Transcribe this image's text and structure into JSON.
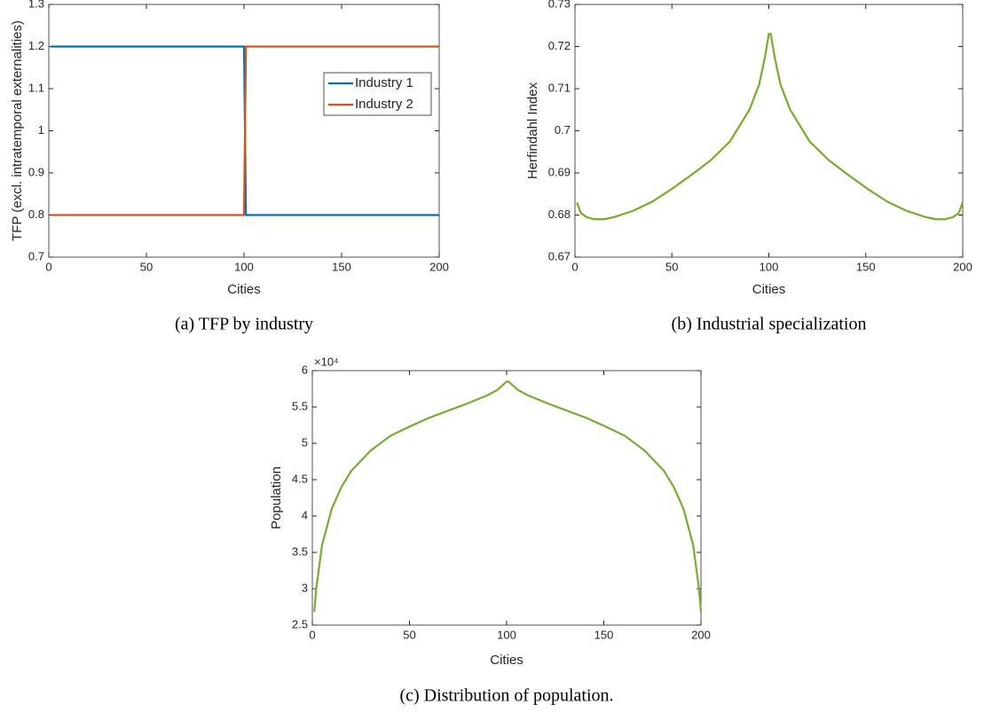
{
  "chart_data": [
    {
      "type": "line",
      "caption": "(a)  TFP by industry",
      "xlabel": "Cities",
      "ylabel": "TFP (excl. intratemporal externalities)",
      "x": [
        1,
        100,
        101,
        200
      ],
      "series": [
        {
          "name": "Industry 1",
          "color": "#0072BD",
          "values": [
            1.2,
            1.2,
            0.8,
            0.8
          ]
        },
        {
          "name": "Industry 2",
          "color": "#D95319",
          "values": [
            0.8,
            0.8,
            1.2,
            1.2
          ]
        }
      ],
      "xlim": [
        0,
        200
      ],
      "xticks": [
        0,
        50,
        100,
        150,
        200
      ],
      "ylim": [
        0.7,
        1.3
      ],
      "yticks": [
        0.7,
        0.8,
        0.9,
        1,
        1.1,
        1.2,
        1.3
      ],
      "legend": "right"
    },
    {
      "type": "line",
      "caption": "(b) Industrial specialization",
      "xlabel": "Cities",
      "ylabel": "Herfindahl Index",
      "x": [
        1,
        3,
        6,
        10,
        15,
        20,
        30,
        40,
        50,
        60,
        70,
        80,
        90,
        95,
        98,
        100,
        101,
        103,
        106,
        111,
        121,
        131,
        141,
        151,
        161,
        171,
        181,
        186,
        191,
        195,
        198,
        200
      ],
      "series": [
        {
          "name": "Herfindahl Index",
          "color": "#77AC30",
          "values": [
            0.683,
            0.6805,
            0.6795,
            0.679,
            0.679,
            0.6795,
            0.681,
            0.6832,
            0.6862,
            0.6895,
            0.693,
            0.6975,
            0.705,
            0.711,
            0.7175,
            0.723,
            0.723,
            0.7175,
            0.711,
            0.705,
            0.6975,
            0.693,
            0.6895,
            0.6862,
            0.6832,
            0.681,
            0.6795,
            0.679,
            0.679,
            0.6795,
            0.6805,
            0.683
          ]
        }
      ],
      "xlim": [
        0,
        200
      ],
      "xticks": [
        0,
        50,
        100,
        150,
        200
      ],
      "ylim": [
        0.67,
        0.73
      ],
      "yticks": [
        0.67,
        0.68,
        0.69,
        0.7,
        0.71,
        0.72,
        0.73
      ]
    },
    {
      "type": "line",
      "caption": "(c)  Distribution of population.",
      "xlabel": "Cities",
      "ylabel": "Population",
      "y_exponent_label": "×10⁴",
      "x": [
        1,
        2,
        5,
        10,
        15,
        20,
        30,
        40,
        50,
        60,
        70,
        80,
        90,
        95,
        100,
        101,
        106,
        111,
        121,
        131,
        141,
        151,
        161,
        171,
        181,
        186,
        191,
        196,
        199,
        200
      ],
      "series": [
        {
          "name": "Population",
          "color": "#77AC30",
          "values": [
            26800,
            30000,
            36000,
            41000,
            44000,
            46200,
            49000,
            51000,
            52300,
            53500,
            54500,
            55500,
            56600,
            57300,
            58500,
            58500,
            57300,
            56600,
            55500,
            54500,
            53500,
            52300,
            51000,
            49000,
            46200,
            44000,
            41000,
            36000,
            30000,
            26800
          ]
        }
      ],
      "xlim": [
        0,
        200
      ],
      "xticks": [
        0,
        50,
        100,
        150,
        200
      ],
      "ylim": [
        25000,
        60000
      ],
      "yticks": [
        {
          "value": 25000,
          "label": "2.5"
        },
        {
          "value": 30000,
          "label": "3"
        },
        {
          "value": 35000,
          "label": "3.5"
        },
        {
          "value": 40000,
          "label": "4"
        },
        {
          "value": 45000,
          "label": "4.5"
        },
        {
          "value": 50000,
          "label": "5"
        },
        {
          "value": 55000,
          "label": "5.5"
        },
        {
          "value": 60000,
          "label": "6"
        }
      ]
    }
  ]
}
